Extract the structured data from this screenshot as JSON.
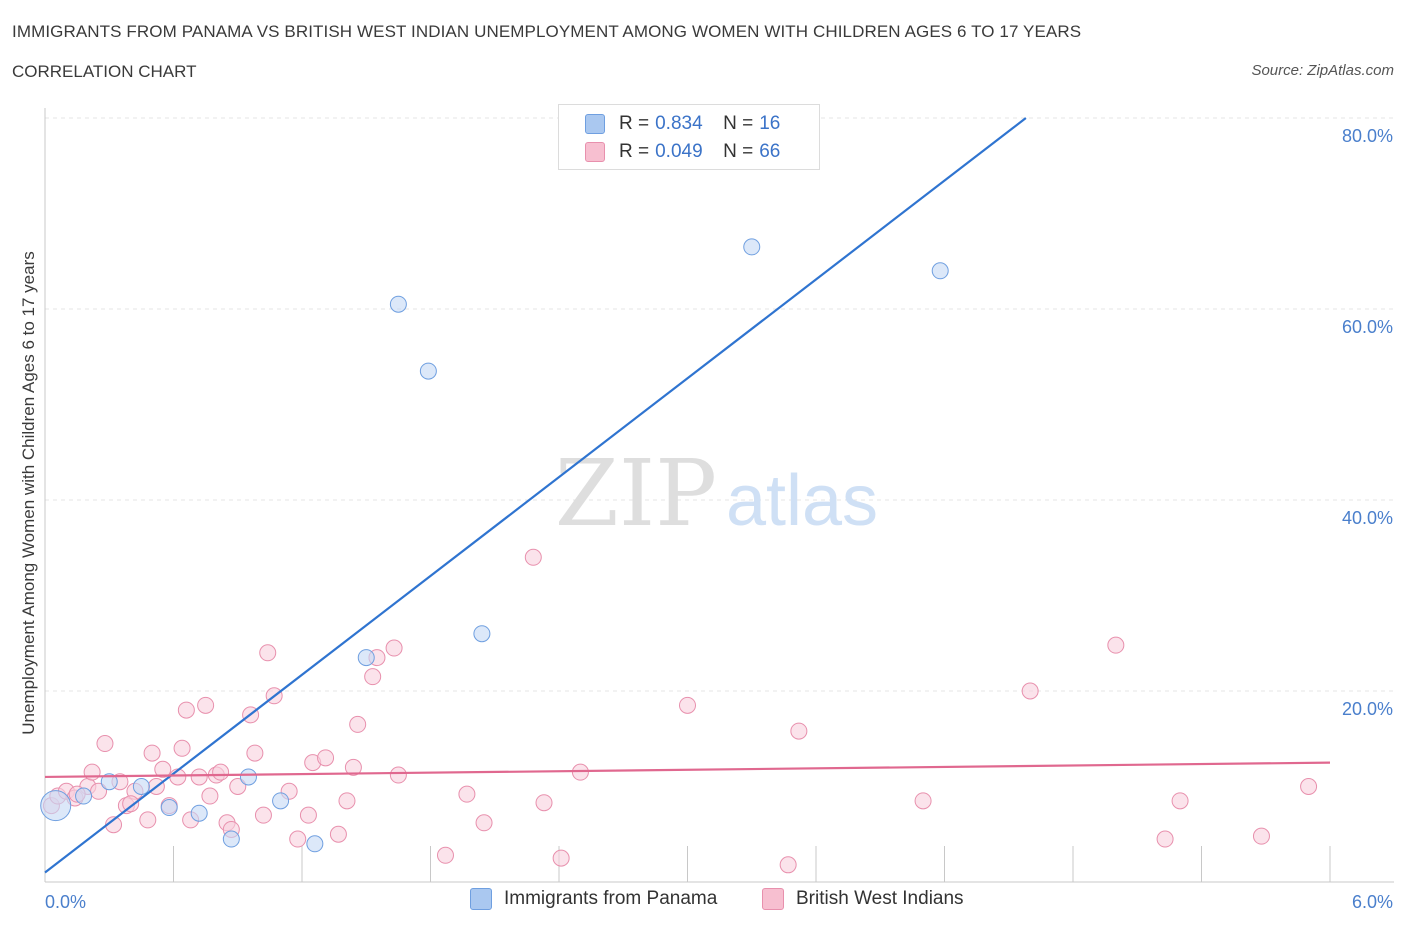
{
  "header": {
    "title": "IMMIGRANTS FROM PANAMA VS BRITISH WEST INDIAN UNEMPLOYMENT AMONG WOMEN WITH CHILDREN AGES 6 TO 17 YEARS",
    "subtitle": "CORRELATION CHART",
    "source": "Source: ZipAtlas.com"
  },
  "watermark": {
    "zip": "ZIP",
    "atlas": "atlas"
  },
  "legend": {
    "r_label": "R =",
    "n_label": "N =",
    "rows": [
      {
        "r": "0.834",
        "n": "16",
        "color": "#aac8f0",
        "border": "#6f9fe0"
      },
      {
        "r": "0.049",
        "n": "66",
        "color": "#f7bfd0",
        "border": "#e890ad"
      }
    ]
  },
  "chart_data": {
    "type": "scatter",
    "title": "IMMIGRANTS FROM PANAMA VS BRITISH WEST INDIAN UNEMPLOYMENT AMONG WOMEN WITH CHILDREN AGES 6 TO 17 YEARS",
    "xlabel": "",
    "ylabel": "Unemployment Among Women with Children Ages 6 to 17 years",
    "xlim": [
      0,
      6
    ],
    "ylim": [
      0,
      80
    ],
    "x_tick_labels": [
      "0.0%",
      "6.0%"
    ],
    "y_ticks": [
      20,
      40,
      60,
      80
    ],
    "y_tick_labels": [
      "20.0%",
      "40.0%",
      "60.0%",
      "80.0%"
    ],
    "grid": true,
    "legend_position": "bottom",
    "series": [
      {
        "name": "Immigrants from Panama",
        "color": "#6f9fe0",
        "fill": "#c5d9f5",
        "trendline": {
          "x": [
            0,
            4.58
          ],
          "y": [
            1.0,
            80.0
          ],
          "color": "#2f74d0"
        },
        "points": [
          {
            "x": 0.05,
            "y": 8.0,
            "big": true
          },
          {
            "x": 0.18,
            "y": 9.0
          },
          {
            "x": 0.3,
            "y": 10.5
          },
          {
            "x": 0.45,
            "y": 10.0
          },
          {
            "x": 0.58,
            "y": 7.8
          },
          {
            "x": 0.72,
            "y": 7.2
          },
          {
            "x": 0.87,
            "y": 4.5
          },
          {
            "x": 0.95,
            "y": 11.0
          },
          {
            "x": 1.1,
            "y": 8.5
          },
          {
            "x": 1.26,
            "y": 4.0
          },
          {
            "x": 1.5,
            "y": 23.5
          },
          {
            "x": 1.65,
            "y": 60.5
          },
          {
            "x": 1.79,
            "y": 53.5
          },
          {
            "x": 2.04,
            "y": 26.0
          },
          {
            "x": 3.3,
            "y": 66.5
          },
          {
            "x": 4.18,
            "y": 64.0
          }
        ]
      },
      {
        "name": "British West Indians",
        "color": "#e890ad",
        "fill": "#f9d0dd",
        "trendline": {
          "x": [
            0,
            6
          ],
          "y": [
            11.0,
            12.5
          ],
          "color": "#e0688f"
        },
        "points": [
          {
            "x": 0.03,
            "y": 8.0
          },
          {
            "x": 0.06,
            "y": 9.0
          },
          {
            "x": 0.1,
            "y": 9.5
          },
          {
            "x": 0.14,
            "y": 8.8
          },
          {
            "x": 0.2,
            "y": 10.0
          },
          {
            "x": 0.22,
            "y": 11.5
          },
          {
            "x": 0.25,
            "y": 9.5
          },
          {
            "x": 0.28,
            "y": 14.5
          },
          {
            "x": 0.32,
            "y": 6.0
          },
          {
            "x": 0.35,
            "y": 10.5
          },
          {
            "x": 0.38,
            "y": 8.0
          },
          {
            "x": 0.42,
            "y": 9.5
          },
          {
            "x": 0.48,
            "y": 6.5
          },
          {
            "x": 0.5,
            "y": 13.5
          },
          {
            "x": 0.52,
            "y": 10.0
          },
          {
            "x": 0.55,
            "y": 11.8
          },
          {
            "x": 0.58,
            "y": 8.0
          },
          {
            "x": 0.62,
            "y": 11.0
          },
          {
            "x": 0.64,
            "y": 14.0
          },
          {
            "x": 0.66,
            "y": 18.0
          },
          {
            "x": 0.68,
            "y": 6.5
          },
          {
            "x": 0.72,
            "y": 11.0
          },
          {
            "x": 0.75,
            "y": 18.5
          },
          {
            "x": 0.77,
            "y": 9.0
          },
          {
            "x": 0.8,
            "y": 11.2
          },
          {
            "x": 0.82,
            "y": 11.5
          },
          {
            "x": 0.85,
            "y": 6.2
          },
          {
            "x": 0.87,
            "y": 5.5
          },
          {
            "x": 0.9,
            "y": 10.0
          },
          {
            "x": 0.96,
            "y": 17.5
          },
          {
            "x": 0.98,
            "y": 13.5
          },
          {
            "x": 1.02,
            "y": 7.0
          },
          {
            "x": 1.04,
            "y": 24.0
          },
          {
            "x": 1.07,
            "y": 19.5
          },
          {
            "x": 1.14,
            "y": 9.5
          },
          {
            "x": 1.18,
            "y": 4.5
          },
          {
            "x": 1.23,
            "y": 7.0
          },
          {
            "x": 1.25,
            "y": 12.5
          },
          {
            "x": 1.31,
            "y": 13.0
          },
          {
            "x": 1.37,
            "y": 5.0
          },
          {
            "x": 1.41,
            "y": 8.5
          },
          {
            "x": 1.44,
            "y": 12.0
          },
          {
            "x": 1.46,
            "y": 16.5
          },
          {
            "x": 1.53,
            "y": 21.5
          },
          {
            "x": 1.55,
            "y": 23.5
          },
          {
            "x": 1.63,
            "y": 24.5
          },
          {
            "x": 1.65,
            "y": 11.2
          },
          {
            "x": 1.87,
            "y": 2.8
          },
          {
            "x": 1.97,
            "y": 9.2
          },
          {
            "x": 2.05,
            "y": 6.2
          },
          {
            "x": 2.28,
            "y": 34.0
          },
          {
            "x": 2.33,
            "y": 8.3
          },
          {
            "x": 2.41,
            "y": 2.5
          },
          {
            "x": 2.5,
            "y": 11.5
          },
          {
            "x": 3.0,
            "y": 18.5
          },
          {
            "x": 3.47,
            "y": 1.8
          },
          {
            "x": 3.52,
            "y": 15.8
          },
          {
            "x": 4.1,
            "y": 8.5
          },
          {
            "x": 4.6,
            "y": 20.0
          },
          {
            "x": 5.0,
            "y": 24.8
          },
          {
            "x": 5.23,
            "y": 4.5
          },
          {
            "x": 5.3,
            "y": 8.5
          },
          {
            "x": 5.68,
            "y": 4.8
          },
          {
            "x": 5.9,
            "y": 10.0
          },
          {
            "x": 0.15,
            "y": 9.2
          },
          {
            "x": 0.4,
            "y": 8.2
          }
        ]
      }
    ]
  }
}
